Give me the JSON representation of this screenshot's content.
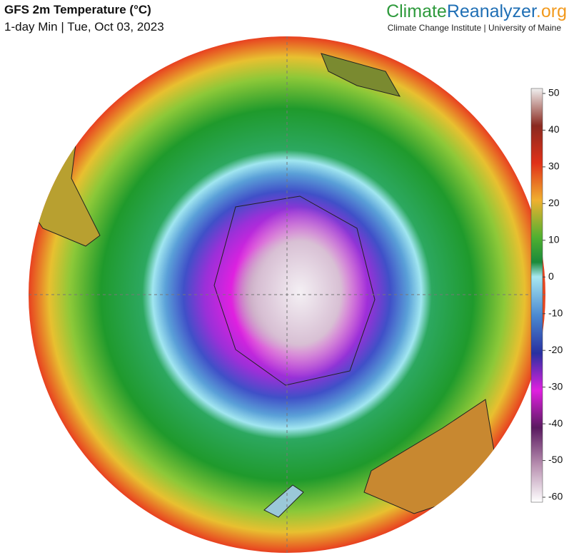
{
  "header": {
    "title": "GFS 2m Temperature (°C)",
    "subtitle": "1-day Min | Tue, Oct 03, 2023"
  },
  "brand": {
    "part1": "Climate",
    "part2": "Reanalyzer",
    "part3": ".org",
    "organization": "Climate Change Institute | University of Maine"
  },
  "colorbar": {
    "range": [
      -60,
      50
    ],
    "ticks": [
      50,
      40,
      30,
      20,
      10,
      0,
      -10,
      -20,
      -30,
      -40,
      -50,
      -60
    ]
  }
}
